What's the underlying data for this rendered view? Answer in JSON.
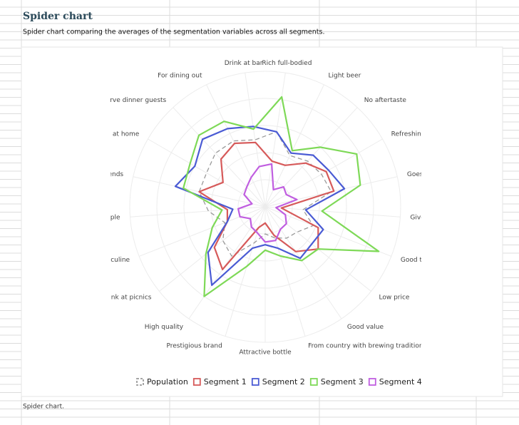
{
  "header": {
    "title": "Spider chart",
    "subtitle": "Spider chart comparing the averages of the segmentation variables across all segments."
  },
  "chart_data": {
    "type": "radar",
    "categories": [
      "Rich full-bodied",
      "Light beer",
      "No aftertaste",
      "Refreshing",
      "Goes down eas",
      "Gives a buz",
      "Good taste",
      "Low price",
      "Good value",
      "From country with brewing tradition",
      "Attractive bottle",
      "Prestigious brand",
      "High quality",
      "Drink at picnics",
      "Masculine",
      "young people",
      "nk with friends",
      "Drink at home",
      "To serve dinner guests",
      "For dining out",
      "Drink at bar"
    ],
    "rlim": [
      0,
      5
    ],
    "grid": true,
    "series": [
      {
        "name": "Population",
        "color": "#9a9a9a",
        "dashed": true,
        "values": [
          2.8,
          2.1,
          2.3,
          2.4,
          2.5,
          1.4,
          1.9,
          1.5,
          1.4,
          1.2,
          1.0,
          1.4,
          2.2,
          2.0,
          1.6,
          2.1,
          2.5,
          2.5,
          2.7,
          2.7,
          2.5
        ]
      },
      {
        "name": "Segment 1",
        "color": "#d65a5a",
        "values": [
          1.7,
          1.7,
          2.2,
          2.6,
          2.6,
          0.6,
          2.1,
          2.5,
          2.0,
          1.1,
          0.6,
          0.8,
          2.8,
          2.4,
          1.5,
          1.4,
          2.5,
          1.8,
          2.4,
          2.6,
          2.4
        ]
      },
      {
        "name": "Segment 2",
        "color": "#4a5bd4",
        "values": [
          2.8,
          2.2,
          2.6,
          2.7,
          3.0,
          1.5,
          2.3,
          2.2,
          2.3,
          1.6,
          1.4,
          1.6,
          3.5,
          2.7,
          1.5,
          1.2,
          3.4,
          3.0,
          3.4,
          3.2,
          3.0
        ]
      },
      {
        "name": "Segment 3",
        "color": "#7ed957",
        "values": [
          4.1,
          2.3,
          3.0,
          3.9,
          3.6,
          2.1,
          4.5,
          2.5,
          2.4,
          1.9,
          1.6,
          2.3,
          4.0,
          2.8,
          2.1,
          1.6,
          3.1,
          3.2,
          3.6,
          3.5,
          2.9
        ]
      },
      {
        "name": "Segment 4",
        "color": "#c05ee0",
        "values": [
          1.6,
          0.7,
          1.0,
          0.9,
          1.2,
          0.4,
          0.8,
          1.0,
          1.0,
          1.3,
          1.3,
          1.0,
          0.9,
          0.7,
          1.0,
          1.0,
          0.5,
          0.9,
          1.0,
          1.2,
          1.5
        ]
      }
    ]
  },
  "footnote": "Spider chart."
}
